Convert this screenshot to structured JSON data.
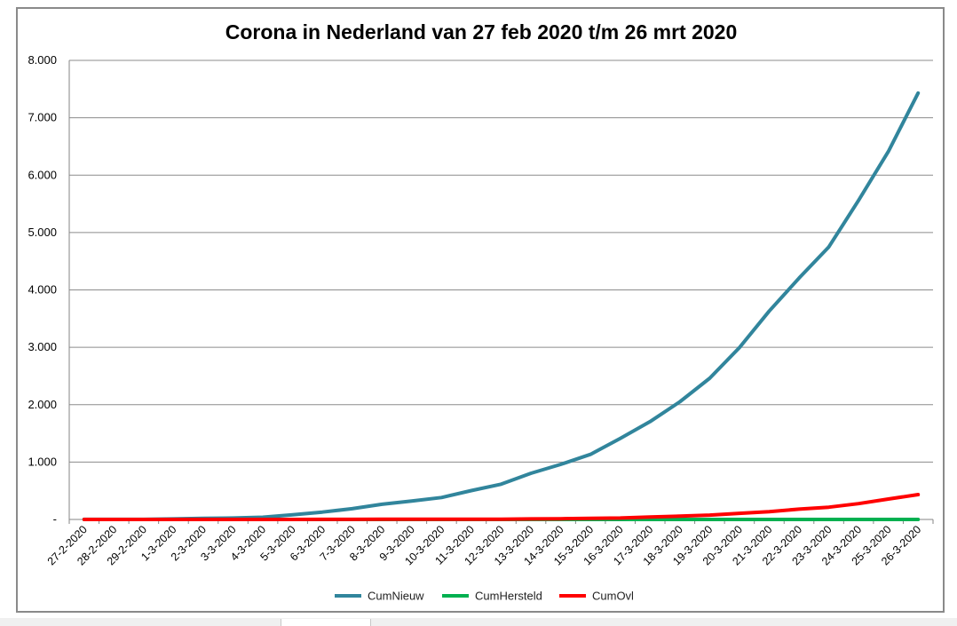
{
  "chart_data": {
    "type": "line",
    "title": "Corona in Nederland van 27 feb 2020 t/m 26 mrt 2020",
    "xlabel": "",
    "ylabel": "",
    "ylim": [
      0,
      8000
    ],
    "yticks": [
      0,
      1000,
      2000,
      3000,
      4000,
      5000,
      6000,
      7000,
      8000
    ],
    "ytick_labels": [
      "-",
      "1.000",
      "2.000",
      "3.000",
      "4.000",
      "5.000",
      "6.000",
      "7.000",
      "8.000"
    ],
    "grid": true,
    "legend_position": "bottom",
    "categories": [
      "27-2-2020",
      "28-2-2020",
      "29-2-2020",
      "1-3-2020",
      "2-3-2020",
      "3-3-2020",
      "4-3-2020",
      "5-3-2020",
      "6-3-2020",
      "7-3-2020",
      "8-3-2020",
      "9-3-2020",
      "10-3-2020",
      "11-3-2020",
      "12-3-2020",
      "13-3-2020",
      "14-3-2020",
      "15-3-2020",
      "16-3-2020",
      "17-3-2020",
      "18-3-2020",
      "19-3-2020",
      "20-3-2020",
      "21-3-2020",
      "22-3-2020",
      "23-3-2020",
      "24-3-2020",
      "25-3-2020",
      "26-3-2020"
    ],
    "series": [
      {
        "name": "CumNieuw",
        "color": "#31859c",
        "values": [
          1,
          1,
          2,
          10,
          18,
          24,
          38,
          82,
          128,
          188,
          265,
          321,
          382,
          503,
          614,
          804,
          959,
          1135,
          1413,
          1705,
          2051,
          2460,
          2994,
          3631,
          4204,
          4749,
          5560,
          6412,
          7431
        ]
      },
      {
        "name": "CumHersteld",
        "color": "#00b050",
        "values": [
          0,
          0,
          0,
          0,
          0,
          0,
          0,
          0,
          0,
          0,
          0,
          0,
          0,
          0,
          0,
          0,
          0,
          0,
          0,
          0,
          0,
          0,
          0,
          0,
          0,
          0,
          0,
          0,
          0
        ]
      },
      {
        "name": "CumOvl",
        "color": "#ff0000",
        "values": [
          0,
          0,
          0,
          0,
          0,
          0,
          0,
          0,
          1,
          1,
          3,
          3,
          4,
          5,
          5,
          10,
          12,
          20,
          24,
          43,
          58,
          76,
          106,
          136,
          179,
          213,
          276,
          356,
          434
        ]
      }
    ]
  }
}
